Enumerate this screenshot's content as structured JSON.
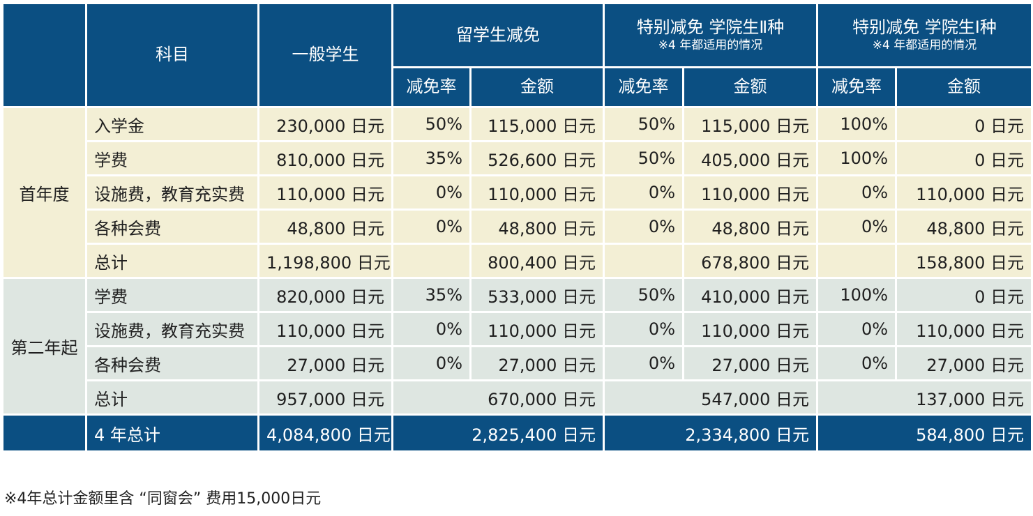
{
  "header": {
    "subject": "科目",
    "general": "一般学生",
    "intl": "留学生减免",
    "special2": "特别减免 学院生Ⅱ种",
    "special1": "特别减免 学院生Ⅰ种",
    "note_4yr": "※4 年都适用的情况",
    "rate": "减免率",
    "amount": "金额"
  },
  "groups": {
    "first": "首年度",
    "second": "第二年起"
  },
  "first_year": [
    {
      "item": "入学金",
      "general": "230,000 日元",
      "intl_rate": "50%",
      "intl_amt": "115,000 日元",
      "s2_rate": "50%",
      "s2_amt": "115,000 日元",
      "s1_rate": "100%",
      "s1_amt": "0 日元"
    },
    {
      "item": "学费",
      "general": "810,000 日元",
      "intl_rate": "35%",
      "intl_amt": "526,600 日元",
      "s2_rate": "50%",
      "s2_amt": "405,000 日元",
      "s1_rate": "100%",
      "s1_amt": "0 日元"
    },
    {
      "item": "设施费，教育充实费",
      "general": "110,000 日元",
      "intl_rate": "0%",
      "intl_amt": "110,000 日元",
      "s2_rate": "0%",
      "s2_amt": "110,000 日元",
      "s1_rate": "0%",
      "s1_amt": "110,000 日元"
    },
    {
      "item": "各种会费",
      "general": "48,800 日元",
      "intl_rate": "0%",
      "intl_amt": "48,800 日元",
      "s2_rate": "0%",
      "s2_amt": "48,800 日元",
      "s1_rate": "0%",
      "s1_amt": "48,800 日元"
    }
  ],
  "first_total": {
    "item": "总计",
    "general": "1,198,800 日元",
    "intl_amt": "800,400 日元",
    "s2_amt": "678,800 日元",
    "s1_amt": "158,800 日元"
  },
  "second_year": [
    {
      "item": "学费",
      "general": "820,000 日元",
      "intl_rate": "35%",
      "intl_amt": "533,000 日元",
      "s2_rate": "50%",
      "s2_amt": "410,000 日元",
      "s1_rate": "100%",
      "s1_amt": "0 日元"
    },
    {
      "item": "设施费，教育充实费",
      "general": "110,000 日元",
      "intl_rate": "0%",
      "intl_amt": "110,000 日元",
      "s2_rate": "0%",
      "s2_amt": "110,000 日元",
      "s1_rate": "0%",
      "s1_amt": "110,000 日元"
    },
    {
      "item": "各种会费",
      "general": "27,000 日元",
      "intl_rate": "0%",
      "intl_amt": "27,000 日元",
      "s2_rate": "0%",
      "s2_amt": "27,000 日元",
      "s1_rate": "0%",
      "s1_amt": "27,000 日元"
    }
  ],
  "second_total": {
    "item": "总计",
    "general": "957,000 日元",
    "intl_amt": "670,000 日元",
    "s2_amt": "547,000 日元",
    "s1_amt": "137,000 日元"
  },
  "grand_total": {
    "item": "4 年总计",
    "general": "4,084,800 日元",
    "intl": "2,825,400 日元",
    "s2": "2,334,800 日元",
    "s1": "584,800 日元"
  },
  "footnote": "※4年总计金额里含 “同窗会” 费用15,000日元",
  "colors": {
    "header_bg": "#0b4f82",
    "first_year_bg": "#f3efd5",
    "second_year_bg": "#dee6e1",
    "text": "#1f1f1f"
  }
}
